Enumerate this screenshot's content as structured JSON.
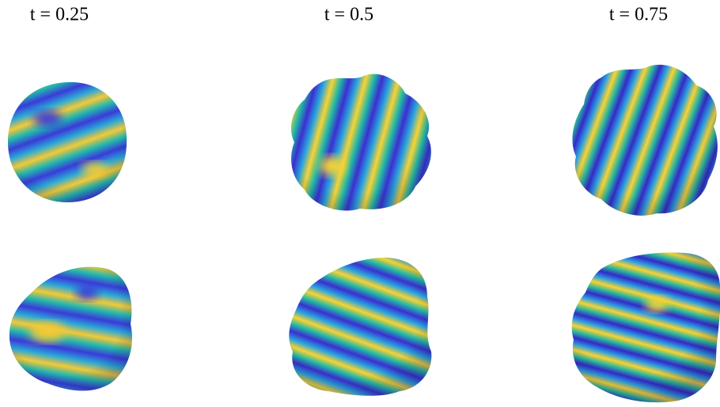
{
  "panels": [
    {
      "title": "t = 0.25"
    },
    {
      "title": "t = 0.5"
    },
    {
      "title": "t = 0.75"
    }
  ]
}
